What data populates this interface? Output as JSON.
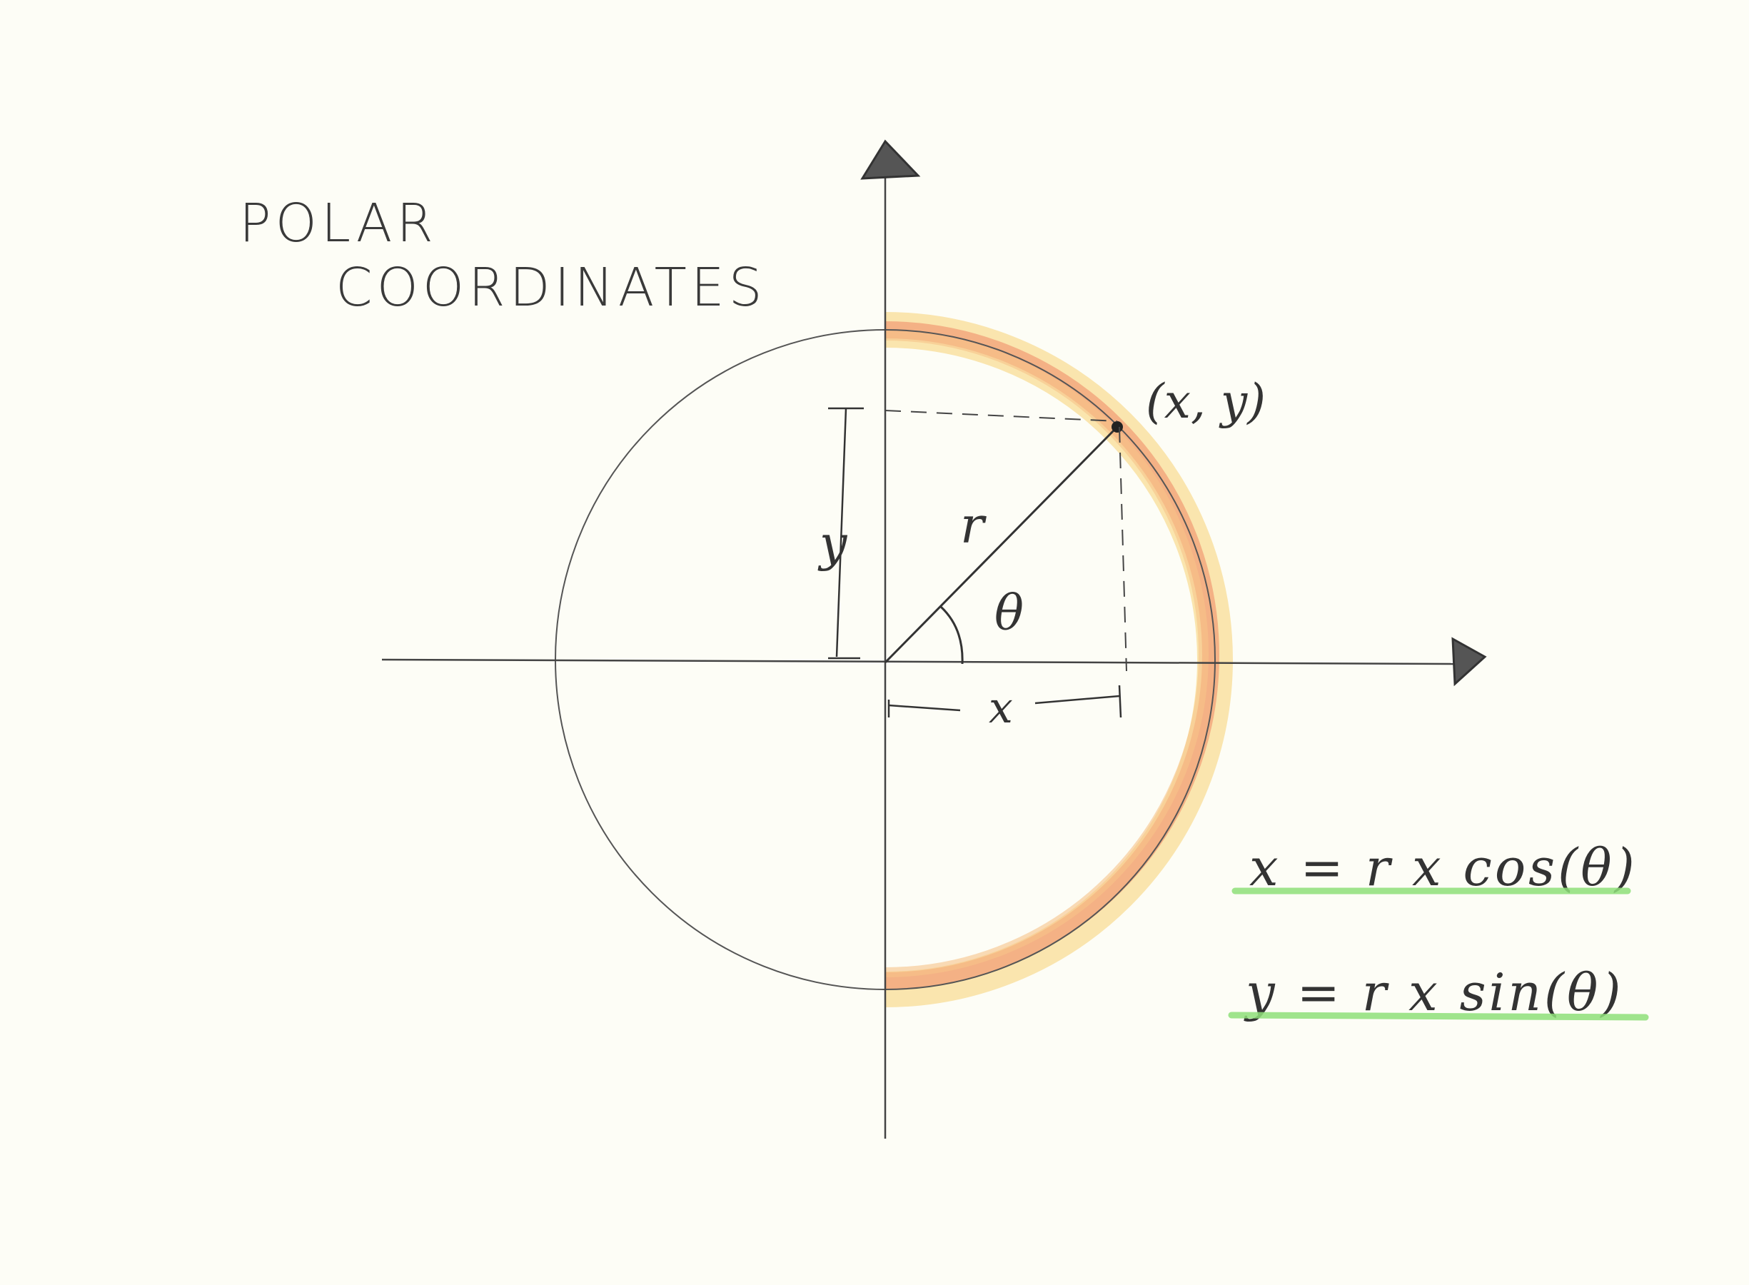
{
  "title": {
    "line1": "POLAR",
    "line2": "COORDINATES"
  },
  "labels": {
    "point": "(x, y)",
    "radius": "r",
    "angle": "θ",
    "x_dim": "x",
    "y_dim": "y"
  },
  "formulas": {
    "x_eq": "x = r x cos(θ)",
    "y_eq": "y = r x sin(θ)"
  },
  "colors": {
    "paper": "#fdfdf6",
    "ink": "#333333",
    "arc_orange": "#f0a070",
    "arc_yellow": "#f8d68a",
    "underline_green": "#8fe07a"
  }
}
